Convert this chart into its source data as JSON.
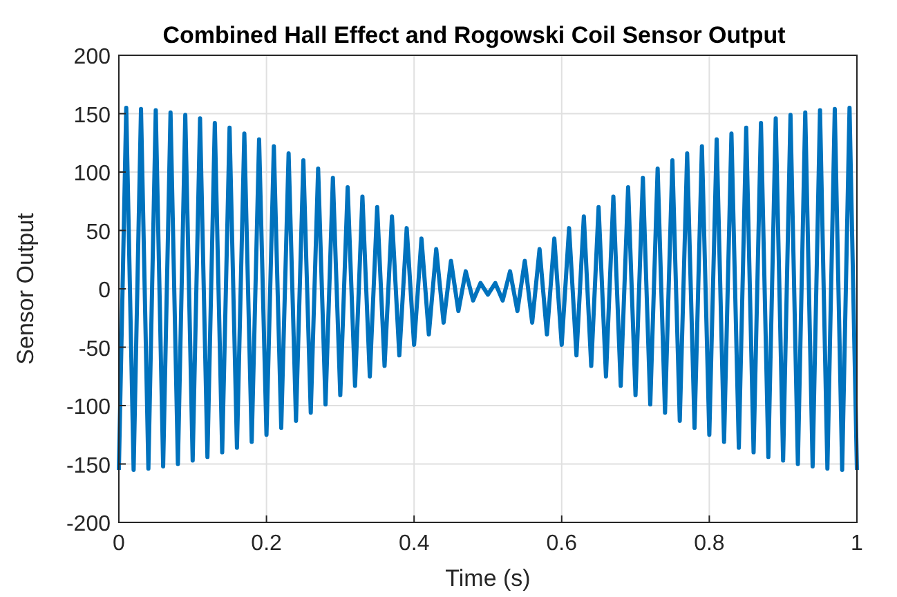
{
  "chart_data": {
    "type": "line",
    "title": "Combined Hall Effect and Rogowski Coil Sensor Output",
    "xlabel": "Time (s)",
    "ylabel": "Sensor Output",
    "x": [
      0,
      0.01,
      0.02,
      0.03,
      0.04,
      0.05,
      0.06,
      0.07,
      0.08,
      0.09,
      0.1,
      0.11,
      0.12,
      0.13,
      0.14,
      0.15,
      0.16,
      0.17,
      0.18,
      0.19,
      0.2,
      0.21,
      0.22,
      0.23,
      0.24,
      0.25,
      0.26,
      0.27,
      0.28,
      0.29,
      0.3,
      0.31,
      0.32,
      0.33,
      0.34,
      0.35,
      0.36,
      0.37,
      0.38,
      0.39,
      0.4,
      0.41,
      0.42,
      0.43,
      0.44,
      0.45,
      0.46,
      0.47,
      0.48,
      0.49,
      0.5,
      0.51,
      0.52,
      0.53,
      0.54,
      0.55,
      0.56,
      0.57,
      0.58,
      0.59,
      0.6,
      0.61,
      0.62,
      0.63,
      0.64,
      0.65,
      0.66,
      0.67,
      0.68,
      0.69,
      0.7,
      0.71,
      0.72,
      0.73,
      0.74,
      0.75,
      0.76,
      0.77,
      0.78,
      0.79,
      0.8,
      0.81,
      0.82,
      0.83,
      0.84,
      0.85,
      0.86,
      0.87,
      0.88,
      0.89,
      0.9,
      0.91,
      0.92,
      0.93,
      0.94,
      0.95,
      0.96,
      0.97,
      0.98,
      0.99,
      1
    ],
    "series": [
      {
        "color": "#0072bd",
        "values": [
          -155,
          155,
          -155,
          154,
          -154,
          153,
          -152,
          151,
          -150,
          149,
          -147,
          146,
          -144,
          142,
          -140,
          138,
          -136,
          133,
          -131,
          128,
          -125,
          122,
          -119,
          116,
          -113,
          110,
          -106,
          103,
          -99,
          95,
          -91,
          87,
          -83,
          79,
          -75,
          70,
          -66,
          62,
          -57,
          52,
          -48,
          43,
          -39,
          34,
          -29,
          24,
          -19,
          15,
          -10,
          5,
          -5,
          5,
          -10,
          15,
          -19,
          24,
          -29,
          34,
          -39,
          43,
          -48,
          52,
          -57,
          62,
          -66,
          70,
          -75,
          79,
          -83,
          87,
          -91,
          95,
          -99,
          103,
          -106,
          110,
          -113,
          116,
          -119,
          122,
          -125,
          128,
          -131,
          133,
          -136,
          138,
          -140,
          142,
          -144,
          146,
          -147,
          149,
          -150,
          151,
          -152,
          153,
          -154,
          154,
          -155,
          155,
          -155
        ]
      }
    ],
    "xlim": [
      0,
      1
    ],
    "xticks": [
      0,
      0.2,
      0.4,
      0.6,
      0.8,
      1
    ],
    "ylim": [
      -200,
      200
    ],
    "yticks": [
      -200,
      -150,
      -100,
      -50,
      0,
      50,
      100,
      150,
      200
    ],
    "grid": true,
    "line_style": "solid"
  }
}
